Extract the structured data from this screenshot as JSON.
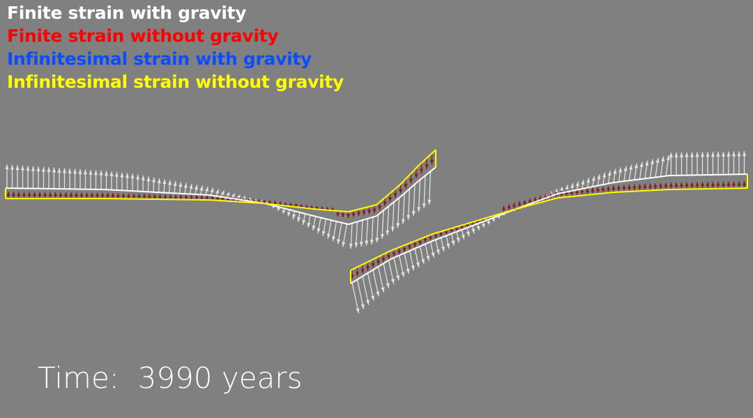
{
  "legend": {
    "items": [
      {
        "label": "Finite strain with gravity",
        "color": "#ffffff"
      },
      {
        "label": "Finite strain without gravity",
        "color": "#ff0000"
      },
      {
        "label": "Infinitesimal strain with gravity",
        "color": "#0b4cff"
      },
      {
        "label": "Infinitesimal strain without gravity",
        "color": "#ffff00"
      }
    ]
  },
  "time_label": "Time:  3990 years",
  "colors": {
    "background": "#808080",
    "finite_gravity": "#ffffff",
    "finite_no_gravity": "#ff0000",
    "infinitesimal_no_gravity": "#ffff00",
    "arrows_gravity": "#e2e2dc",
    "arrows_no_gravity": "#8b1a10",
    "time_text": "#ffffff"
  }
}
